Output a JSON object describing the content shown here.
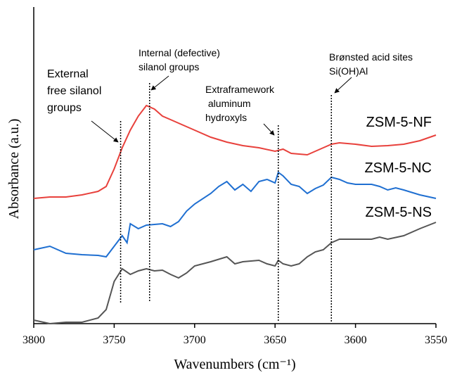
{
  "chart_data": {
    "type": "line",
    "x_label": "Wavenumbers (cm⁻¹)",
    "y_label": "Absorbance (a.u.)",
    "xlim": [
      3800,
      3550
    ],
    "xticks": [
      3800,
      3750,
      3700,
      3650,
      3600,
      3550
    ],
    "ylim": [
      0,
      440
    ],
    "series": [
      {
        "name": "ZSM-5-NF",
        "color": "#e8413c",
        "x": [
          3800,
          3790,
          3780,
          3770,
          3760,
          3755,
          3750,
          3745,
          3740,
          3735,
          3730,
          3725,
          3720,
          3715,
          3710,
          3700,
          3690,
          3680,
          3670,
          3660,
          3650,
          3645,
          3640,
          3630,
          3625,
          3620,
          3615,
          3610,
          3600,
          3590,
          3580,
          3570,
          3560,
          3550
        ],
        "values": [
          178,
          180,
          180,
          183,
          188,
          195,
          220,
          250,
          275,
          295,
          310,
          305,
          295,
          290,
          285,
          275,
          265,
          258,
          253,
          250,
          245,
          248,
          242,
          240,
          245,
          250,
          255,
          257,
          255,
          252,
          253,
          255,
          260,
          268
        ]
      },
      {
        "name": "ZSM-5-NC",
        "color": "#1f6fd1",
        "x": [
          3800,
          3790,
          3780,
          3770,
          3760,
          3755,
          3750,
          3745,
          3742,
          3740,
          3735,
          3730,
          3720,
          3715,
          3710,
          3705,
          3700,
          3690,
          3685,
          3680,
          3675,
          3670,
          3665,
          3660,
          3655,
          3650,
          3648,
          3645,
          3640,
          3635,
          3630,
          3625,
          3620,
          3615,
          3610,
          3605,
          3600,
          3590,
          3585,
          3580,
          3575,
          3570,
          3560,
          3550
        ],
        "values": [
          105,
          110,
          100,
          98,
          97,
          95,
          110,
          125,
          115,
          142,
          135,
          140,
          142,
          138,
          145,
          160,
          170,
          185,
          195,
          202,
          190,
          198,
          188,
          202,
          205,
          200,
          215,
          210,
          198,
          195,
          185,
          192,
          197,
          208,
          205,
          200,
          198,
          198,
          195,
          190,
          193,
          190,
          183,
          178
        ]
      },
      {
        "name": "ZSM-5-NS",
        "color": "#555555",
        "x": [
          3800,
          3790,
          3780,
          3770,
          3760,
          3755,
          3750,
          3745,
          3740,
          3735,
          3730,
          3725,
          3720,
          3715,
          3710,
          3705,
          3700,
          3690,
          3680,
          3675,
          3670,
          3660,
          3655,
          3650,
          3648,
          3645,
          3640,
          3635,
          3630,
          3625,
          3620,
          3615,
          3610,
          3600,
          3590,
          3585,
          3580,
          3570,
          3560,
          3550
        ],
        "values": [
          5,
          0,
          2,
          2,
          8,
          20,
          60,
          78,
          70,
          75,
          78,
          75,
          76,
          70,
          65,
          72,
          82,
          88,
          95,
          85,
          88,
          90,
          85,
          82,
          90,
          85,
          82,
          85,
          95,
          102,
          105,
          115,
          120,
          120,
          120,
          123,
          120,
          125,
          135,
          144
        ]
      }
    ],
    "annotations": [
      {
        "lines": [
          "External",
          "free silanol",
          "groups"
        ],
        "x": 3746
      },
      {
        "lines": [
          "Internal (defective)",
          "silanol groups"
        ],
        "x": 3728
      },
      {
        "lines": [
          "Extraframework",
          " aluminum",
          "hydroxyls"
        ],
        "x": 3648
      },
      {
        "lines": [
          "Brønsted acid sites",
          "Si(OH)Al"
        ],
        "x": 3615
      }
    ]
  }
}
